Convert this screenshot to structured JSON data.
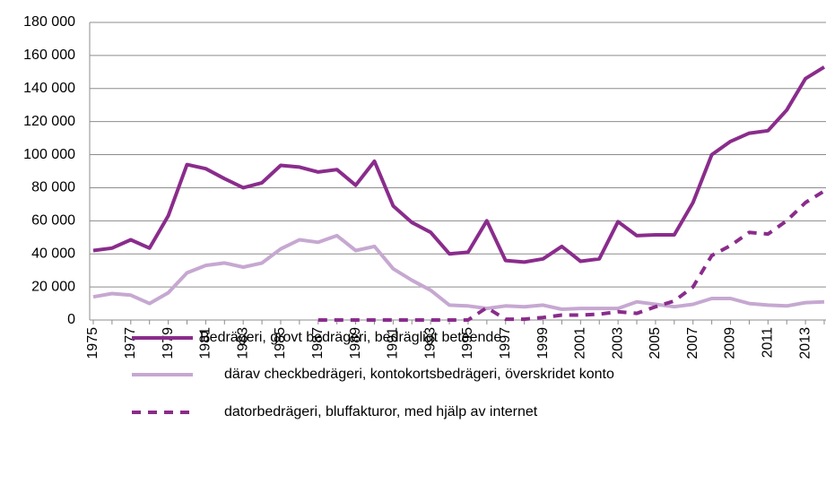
{
  "chart_data": {
    "type": "line",
    "categories": [
      "1975",
      null,
      "1977",
      null,
      "1979",
      null,
      "1981",
      null,
      "1983",
      null,
      "1985",
      null,
      "1987",
      null,
      "1989",
      null,
      "1991",
      null,
      "1993",
      null,
      "1995",
      null,
      "1997",
      null,
      "1999",
      null,
      "2001",
      null,
      "2003",
      null,
      "2005",
      null,
      "2007",
      null,
      "2009",
      null,
      "2011",
      null,
      "2013",
      null
    ],
    "series": [
      {
        "name": "Bedrägeri, grovt bedrägeri, bedrägligt beteende",
        "color": "#8a2c8c",
        "style": "solid",
        "values": [
          42000,
          43500,
          48500,
          43500,
          63000,
          94000,
          91500,
          85500,
          80000,
          83000,
          93500,
          92500,
          89500,
          91000,
          81500,
          96000,
          69000,
          59000,
          53000,
          40000,
          41000,
          60000,
          36000,
          35000,
          37000,
          44500,
          35500,
          37000,
          59500,
          51000,
          51500,
          51500,
          71000,
          100000,
          108000,
          113000,
          114500,
          127000,
          146000,
          153000
        ]
      },
      {
        "name": "därav checkbedrägeri, kontokortsbedrägeri, överskridet konto",
        "color": "#c6a8d1",
        "style": "solid",
        "values": [
          14000,
          16000,
          15000,
          10000,
          16500,
          28500,
          33000,
          34500,
          32000,
          34500,
          43000,
          48500,
          47000,
          51000,
          42000,
          44500,
          31000,
          24000,
          18000,
          9000,
          8500,
          7000,
          8500,
          8000,
          9000,
          6500,
          7000,
          7000,
          7000,
          11000,
          9500,
          8000,
          9500,
          13000,
          13000,
          10000,
          9000,
          8500,
          10500,
          11000
        ]
      },
      {
        "name": "datorbedrägeri, bluffakturor, med hjälp av internet",
        "color": "#8a2c8c",
        "style": "dashed",
        "values": [
          null,
          null,
          null,
          null,
          null,
          null,
          null,
          null,
          null,
          null,
          null,
          null,
          0,
          0,
          0,
          0,
          0,
          0,
          0,
          0,
          0,
          7500,
          500,
          500,
          1500,
          3000,
          3000,
          3500,
          5000,
          4000,
          8000,
          11500,
          20000,
          39000,
          45000,
          53000,
          52000,
          60000,
          71000,
          78000
        ]
      }
    ],
    "ylim": [
      0,
      180000
    ],
    "yticks": [
      0,
      {
        "value": 20000,
        "label": "20 000"
      },
      {
        "value": 40000,
        "label": "40 000"
      },
      {
        "value": 60000,
        "label": "60 000"
      },
      {
        "value": 80000,
        "label": "80 000"
      },
      {
        "value": 100000,
        "label": "100 000"
      },
      {
        "value": 120000,
        "label": "120 000"
      },
      {
        "value": 140000,
        "label": "140 000"
      },
      {
        "value": 160000,
        "label": "160 000"
      },
      {
        "value": 180000,
        "label": "180 000"
      }
    ],
    "grid": true
  }
}
